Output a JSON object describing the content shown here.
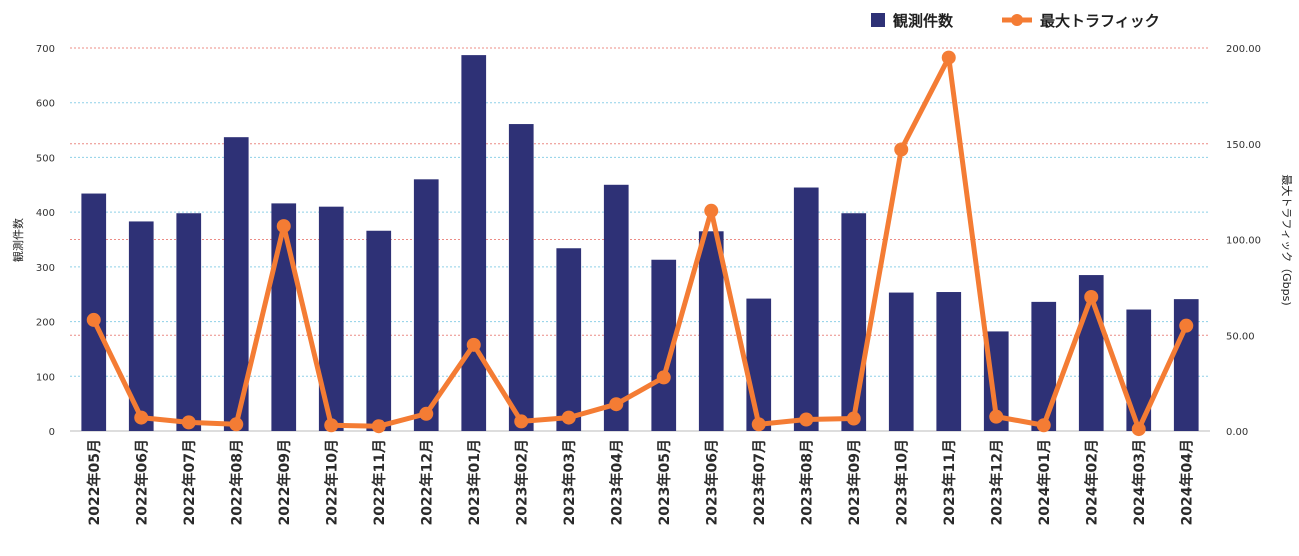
{
  "colors": {
    "bar": "#2e3176",
    "line": "#f47c34",
    "grid_blue": "#8fd0e8",
    "grid_red": "#ec8c86"
  },
  "chart_data": {
    "type": "bar+line",
    "categories": [
      "2022年05月",
      "2022年06月",
      "2022年07月",
      "2022年08月",
      "2022年09月",
      "2022年10月",
      "2022年11月",
      "2022年12月",
      "2023年01月",
      "2023年02月",
      "2023年03月",
      "2023年04月",
      "2023年05月",
      "2023年06月",
      "2023年07月",
      "2023年08月",
      "2023年09月",
      "2023年10月",
      "2023年11月",
      "2023年12月",
      "2024年01月",
      "2024年02月",
      "2024年03月",
      "2024年04月"
    ],
    "series": [
      {
        "name": "観測件数",
        "type": "bar",
        "axis": "left",
        "values": [
          434,
          383,
          398,
          537,
          416,
          410,
          366,
          460,
          687,
          561,
          334,
          450,
          313,
          365,
          242,
          445,
          398,
          253,
          254,
          182,
          236,
          285,
          222,
          241
        ]
      },
      {
        "name": "最大トラフィック",
        "type": "line",
        "axis": "right",
        "values": [
          58,
          7,
          4.5,
          3.5,
          107,
          3,
          2.5,
          9,
          45,
          5,
          7,
          14,
          28,
          115,
          3.5,
          6,
          6.5,
          147,
          195,
          7.5,
          3,
          70,
          1,
          55
        ]
      }
    ],
    "y_left": {
      "label": "観測件数",
      "ylim": [
        0,
        700
      ],
      "ticks": [
        "0",
        "100",
        "200",
        "300",
        "400",
        "500",
        "600",
        "700"
      ]
    },
    "y_right": {
      "label": "最大トラフィック（Gbps)",
      "ylim": [
        0,
        200
      ],
      "ticks": [
        "0.00",
        "50.00",
        "100.00",
        "150.00",
        "200.00"
      ]
    },
    "legend": {
      "position": "top-right",
      "items": [
        "観測件数",
        "最大トラフィック"
      ]
    },
    "grid": true
  }
}
